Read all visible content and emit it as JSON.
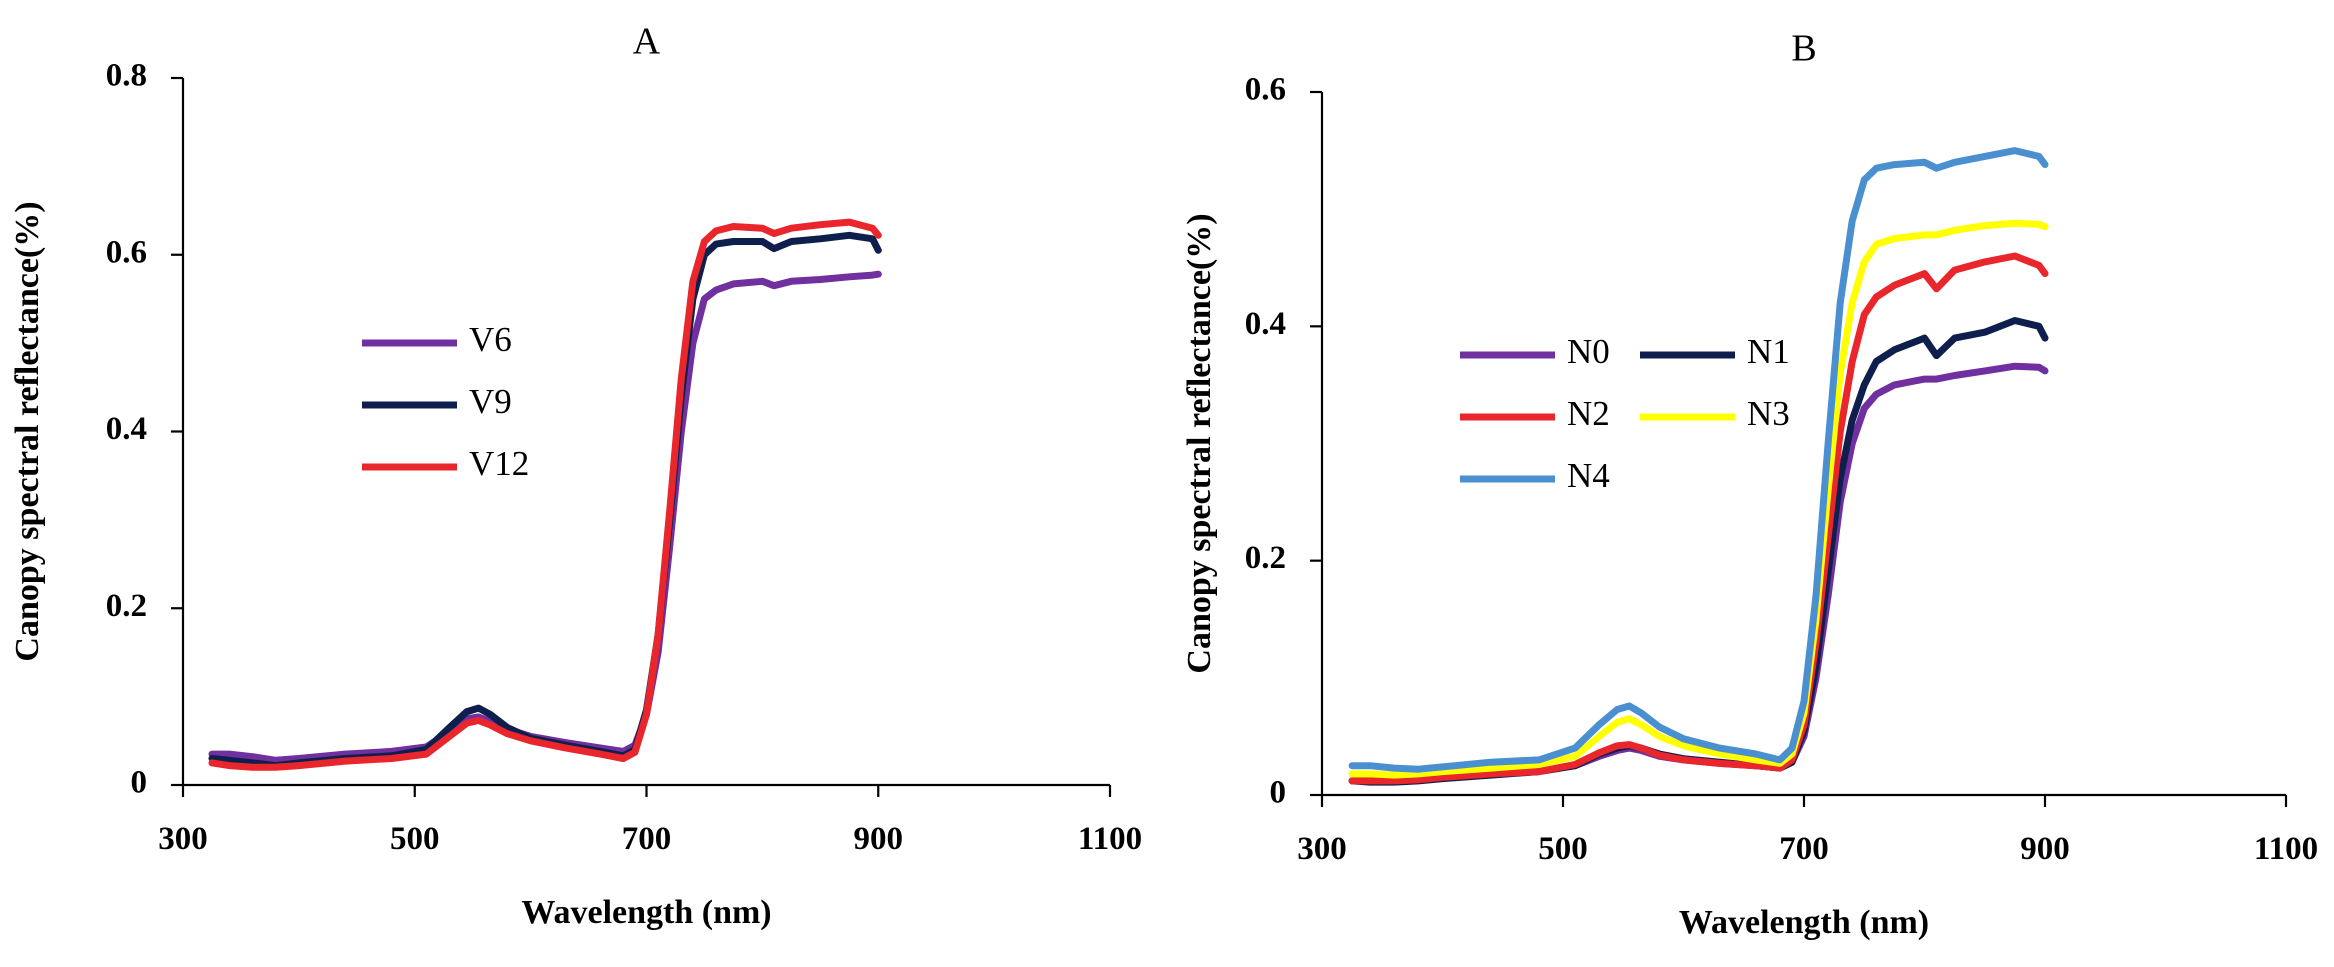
{
  "figure": {
    "panels": [
      "A",
      "B"
    ]
  },
  "chart_data": [
    {
      "type": "line",
      "title": "A",
      "xlabel": "Wavelength (nm)",
      "ylabel": "Canopy spectral reflectance(%)",
      "xlim": [
        300,
        1100
      ],
      "ylim": [
        0,
        0.8
      ],
      "xticks": [
        "300",
        "500",
        "700",
        "900",
        "1100"
      ],
      "yticks": [
        "0",
        "0.2",
        "0.4",
        "0.6",
        "0.8"
      ],
      "legend_position": "center-left",
      "series": [
        {
          "name": "V6",
          "color": "#7030a0",
          "x": [
            325,
            340,
            360,
            380,
            400,
            440,
            480,
            510,
            530,
            545,
            555,
            565,
            580,
            600,
            630,
            660,
            680,
            690,
            700,
            710,
            720,
            730,
            740,
            750,
            760,
            775,
            800,
            810,
            825,
            850,
            875,
            895,
            900
          ],
          "y": [
            0.035,
            0.035,
            0.032,
            0.028,
            0.03,
            0.035,
            0.038,
            0.043,
            0.06,
            0.075,
            0.077,
            0.072,
            0.063,
            0.055,
            0.048,
            0.042,
            0.038,
            0.045,
            0.08,
            0.15,
            0.27,
            0.4,
            0.5,
            0.55,
            0.56,
            0.567,
            0.57,
            0.565,
            0.57,
            0.572,
            0.575,
            0.577,
            0.578
          ]
        },
        {
          "name": "V9",
          "color": "#0f1f4d",
          "x": [
            325,
            340,
            360,
            380,
            400,
            440,
            480,
            510,
            530,
            545,
            555,
            565,
            580,
            600,
            630,
            660,
            680,
            690,
            700,
            710,
            720,
            730,
            740,
            750,
            760,
            775,
            800,
            810,
            825,
            850,
            875,
            895,
            900
          ],
          "y": [
            0.03,
            0.028,
            0.025,
            0.022,
            0.025,
            0.03,
            0.033,
            0.04,
            0.065,
            0.083,
            0.087,
            0.08,
            0.065,
            0.053,
            0.045,
            0.038,
            0.033,
            0.04,
            0.085,
            0.17,
            0.3,
            0.44,
            0.55,
            0.6,
            0.612,
            0.615,
            0.615,
            0.607,
            0.615,
            0.618,
            0.622,
            0.618,
            0.605
          ]
        },
        {
          "name": "V12",
          "color": "#e8262b",
          "x": [
            325,
            340,
            360,
            380,
            400,
            440,
            480,
            510,
            530,
            545,
            555,
            565,
            580,
            600,
            630,
            660,
            680,
            690,
            700,
            710,
            720,
            730,
            740,
            750,
            760,
            775,
            800,
            810,
            825,
            850,
            875,
            895,
            900
          ],
          "y": [
            0.025,
            0.022,
            0.02,
            0.02,
            0.022,
            0.027,
            0.03,
            0.035,
            0.055,
            0.07,
            0.073,
            0.068,
            0.058,
            0.05,
            0.042,
            0.035,
            0.03,
            0.037,
            0.08,
            0.17,
            0.31,
            0.46,
            0.57,
            0.615,
            0.627,
            0.632,
            0.63,
            0.624,
            0.63,
            0.634,
            0.637,
            0.63,
            0.622
          ]
        }
      ]
    },
    {
      "type": "line",
      "title": "B",
      "xlabel": "Wavelength (nm)",
      "ylabel": "Canopy spectral reflectance(%)",
      "xlim": [
        300,
        1100
      ],
      "ylim": [
        0,
        0.6
      ],
      "xticks": [
        "300",
        "500",
        "700",
        "900",
        "1100"
      ],
      "yticks": [
        "0",
        "0.2",
        "0.4",
        "0.6"
      ],
      "legend_position": "center-left",
      "series": [
        {
          "name": "N0",
          "color": "#7030a0",
          "x": [
            325,
            340,
            360,
            380,
            400,
            440,
            480,
            510,
            530,
            545,
            555,
            565,
            580,
            600,
            630,
            660,
            680,
            690,
            700,
            710,
            720,
            730,
            740,
            750,
            760,
            775,
            800,
            810,
            825,
            850,
            875,
            895,
            900
          ],
          "y": [
            0.012,
            0.012,
            0.012,
            0.013,
            0.015,
            0.018,
            0.02,
            0.025,
            0.033,
            0.038,
            0.04,
            0.038,
            0.033,
            0.03,
            0.027,
            0.025,
            0.023,
            0.028,
            0.05,
            0.1,
            0.17,
            0.25,
            0.3,
            0.33,
            0.342,
            0.35,
            0.355,
            0.355,
            0.358,
            0.362,
            0.366,
            0.365,
            0.362
          ]
        },
        {
          "name": "N1",
          "color": "#0f1f4d",
          "x": [
            325,
            340,
            360,
            380,
            400,
            440,
            480,
            510,
            530,
            545,
            555,
            565,
            580,
            600,
            630,
            660,
            680,
            690,
            700,
            710,
            720,
            730,
            740,
            750,
            760,
            775,
            800,
            810,
            825,
            850,
            875,
            895,
            900
          ],
          "y": [
            0.012,
            0.011,
            0.011,
            0.012,
            0.014,
            0.017,
            0.02,
            0.025,
            0.035,
            0.04,
            0.042,
            0.04,
            0.035,
            0.031,
            0.028,
            0.025,
            0.023,
            0.028,
            0.055,
            0.11,
            0.19,
            0.27,
            0.32,
            0.35,
            0.37,
            0.38,
            0.39,
            0.375,
            0.39,
            0.395,
            0.405,
            0.4,
            0.39
          ]
        },
        {
          "name": "N2",
          "color": "#e8262b",
          "x": [
            325,
            340,
            360,
            380,
            400,
            440,
            480,
            510,
            530,
            545,
            555,
            565,
            580,
            600,
            630,
            660,
            680,
            690,
            700,
            710,
            720,
            730,
            740,
            750,
            760,
            775,
            800,
            810,
            825,
            850,
            875,
            895,
            900
          ],
          "y": [
            0.012,
            0.012,
            0.012,
            0.013,
            0.015,
            0.018,
            0.02,
            0.026,
            0.036,
            0.042,
            0.043,
            0.04,
            0.034,
            0.03,
            0.027,
            0.025,
            0.023,
            0.03,
            0.06,
            0.13,
            0.22,
            0.31,
            0.37,
            0.41,
            0.425,
            0.435,
            0.445,
            0.432,
            0.448,
            0.455,
            0.46,
            0.452,
            0.445
          ]
        },
        {
          "name": "N3",
          "color": "#ffff00",
          "x": [
            325,
            340,
            360,
            380,
            400,
            440,
            480,
            510,
            530,
            545,
            555,
            565,
            580,
            600,
            630,
            660,
            680,
            690,
            700,
            710,
            720,
            730,
            740,
            750,
            760,
            775,
            800,
            810,
            825,
            850,
            875,
            895,
            900
          ],
          "y": [
            0.018,
            0.018,
            0.017,
            0.018,
            0.02,
            0.023,
            0.026,
            0.033,
            0.05,
            0.062,
            0.065,
            0.06,
            0.05,
            0.042,
            0.035,
            0.03,
            0.027,
            0.035,
            0.07,
            0.15,
            0.26,
            0.36,
            0.42,
            0.455,
            0.47,
            0.475,
            0.478,
            0.478,
            0.482,
            0.486,
            0.488,
            0.487,
            0.485
          ]
        },
        {
          "name": "N4",
          "color": "#4a90d0",
          "x": [
            325,
            340,
            360,
            380,
            400,
            440,
            480,
            510,
            530,
            545,
            555,
            565,
            580,
            600,
            630,
            660,
            680,
            690,
            700,
            710,
            720,
            730,
            740,
            750,
            760,
            775,
            800,
            810,
            825,
            850,
            875,
            895,
            900
          ],
          "y": [
            0.025,
            0.025,
            0.023,
            0.022,
            0.024,
            0.028,
            0.03,
            0.04,
            0.06,
            0.073,
            0.076,
            0.07,
            0.058,
            0.048,
            0.04,
            0.035,
            0.03,
            0.04,
            0.08,
            0.17,
            0.3,
            0.42,
            0.49,
            0.525,
            0.535,
            0.538,
            0.54,
            0.535,
            0.54,
            0.545,
            0.55,
            0.545,
            0.538
          ]
        }
      ]
    }
  ]
}
